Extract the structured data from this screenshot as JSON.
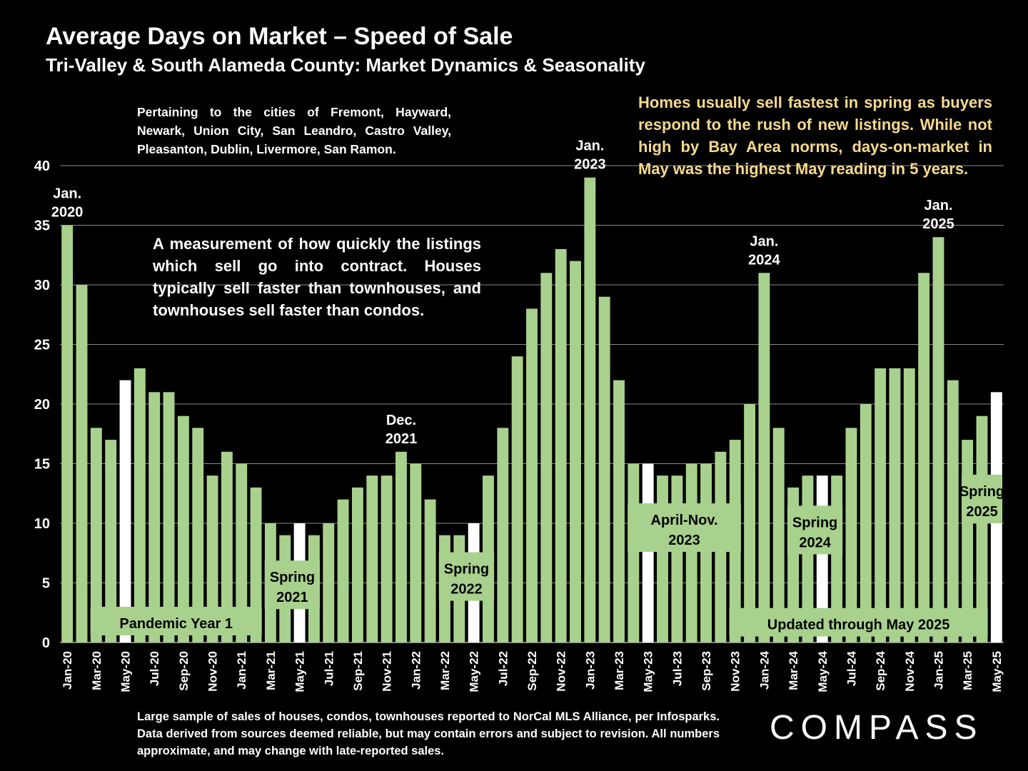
{
  "title": "Average Days on Market – Speed of Sale",
  "subtitle": "Tri-Valley & South Alameda County: Market Dynamics & Seasonality",
  "note_cities": "Pertaining to the cities of Fremont, Hayward, Newark, Union City, San Leandro, Castro Valley, Pleasanton, Dublin, Livermore, San Ramon.",
  "note_measurement": "A measurement of how quickly the listings which sell go into contract. Houses typically sell faster than townhouses, and townhouses sell faster than condos.",
  "note_spring": "Homes usually sell fastest in spring as buyers respond to the rush of new listings. While not high by Bay Area norms, days-on-market in May was the highest May reading in 5 years.",
  "footnote": "Large sample of sales of houses, condos, townhouses reported to NorCal MLS Alliance, per Infosparks. Data derived from sources deemed reliable, but may contain errors and subject to revision. All numbers approximate, and may change with late-reported sales.",
  "logo": "COMPASS",
  "colors": {
    "bar": "#a9d18e",
    "highlight": "#ffffff",
    "note_spring": "#f6d98e",
    "background": "#000000"
  },
  "chart_data": {
    "type": "bar",
    "title": "Average Days on Market – Speed of Sale",
    "ylim": [
      0,
      40
    ],
    "yticks": [
      0,
      5,
      10,
      15,
      20,
      25,
      30,
      35,
      40
    ],
    "grid": true,
    "categories": [
      "Jan-20",
      "Feb-20",
      "Mar-20",
      "Apr-20",
      "May-20",
      "Jun-20",
      "Jul-20",
      "Aug-20",
      "Sep-20",
      "Oct-20",
      "Nov-20",
      "Dec-20",
      "Jan-21",
      "Feb-21",
      "Mar-21",
      "Apr-21",
      "May-21",
      "Jun-21",
      "Jul-21",
      "Aug-21",
      "Sep-21",
      "Oct-21",
      "Nov-21",
      "Dec-21",
      "Jan-22",
      "Feb-22",
      "Mar-22",
      "Apr-22",
      "May-22",
      "Jun-22",
      "Jul-22",
      "Aug-22",
      "Sep-22",
      "Oct-22",
      "Nov-22",
      "Dec-22",
      "Jan-23",
      "Feb-23",
      "Mar-23",
      "Apr-23",
      "May-23",
      "Jun-23",
      "Jul-23",
      "Aug-23",
      "Sep-23",
      "Oct-23",
      "Nov-23",
      "Dec-23",
      "Jan-24",
      "Feb-24",
      "Mar-24",
      "Apr-24",
      "May-24",
      "Jun-24",
      "Jul-24",
      "Aug-24",
      "Sep-24",
      "Oct-24",
      "Nov-24",
      "Dec-24",
      "Jan-25",
      "Feb-25",
      "Mar-25",
      "Apr-25",
      "May-25"
    ],
    "xtick_labels": [
      "Jan-20",
      "Mar-20",
      "May-20",
      "Jul-20",
      "Sep-20",
      "Nov-20",
      "Jan-21",
      "Mar-21",
      "May-21",
      "Jul-21",
      "Sep-21",
      "Nov-21",
      "Jan-22",
      "Mar-22",
      "May-22",
      "Jul-22",
      "Sep-22",
      "Nov-22",
      "Jan-23",
      "Mar-23",
      "May-23",
      "Jul-23",
      "Sep-23",
      "Nov-23",
      "Jan-24",
      "Mar-24",
      "May-24",
      "Jul-24",
      "Sep-24",
      "Nov-24",
      "Jan-25",
      "Mar-25",
      "May-25"
    ],
    "values": [
      35,
      30,
      18,
      17,
      22,
      23,
      21,
      21,
      19,
      18,
      14,
      16,
      15,
      13,
      10,
      9,
      10,
      9,
      10,
      12,
      13,
      14,
      14,
      16,
      15,
      12,
      9,
      9,
      10,
      14,
      18,
      24,
      28,
      31,
      33,
      32,
      39,
      29,
      22,
      15,
      15,
      14,
      14,
      15,
      15,
      16,
      17,
      20,
      31,
      18,
      13,
      14,
      14,
      14,
      18,
      20,
      23,
      23,
      23,
      31,
      34,
      22,
      17,
      19,
      21
    ],
    "highlighted": [
      "May-20",
      "May-21",
      "May-22",
      "May-23",
      "May-24",
      "May-25"
    ],
    "peak_annotations": [
      {
        "category": "Jan-20",
        "text": [
          "Jan.",
          "2020"
        ]
      },
      {
        "category": "Dec-21",
        "text": [
          "Dec.",
          "2021"
        ]
      },
      {
        "category": "Jan-23",
        "text": [
          "Jan.",
          "2023"
        ]
      },
      {
        "category": "Jan-24",
        "text": [
          "Jan.",
          "2024"
        ]
      },
      {
        "category": "Jan-25",
        "text": [
          "Jan.",
          "2025"
        ]
      }
    ],
    "period_labels": [
      {
        "text": [
          "Pandemic Year 1"
        ],
        "from": "Mar-20",
        "to": "Feb-21",
        "y": 0.6
      },
      {
        "text": [
          "Spring",
          "2021"
        ],
        "from": "Mar-21",
        "to": "Jun-21",
        "y": 2.8
      },
      {
        "text": [
          "Spring",
          "2022"
        ],
        "from": "Mar-22",
        "to": "Jun-22",
        "y": 3.5
      },
      {
        "text": [
          "April-Nov.",
          "2023"
        ],
        "from": "Apr-23",
        "to": "Nov-23",
        "y": 7.6
      },
      {
        "text": [
          "Spring",
          "2024"
        ],
        "from": "Mar-24",
        "to": "Jun-24",
        "y": 7.4
      },
      {
        "text": [
          "Spring",
          "2025"
        ],
        "from": "Mar-25",
        "to": "May-25",
        "y": 10.0
      },
      {
        "text": [
          "Updated through May 2025"
        ],
        "from": "Nov-23",
        "to": "Apr-25",
        "y": 0.5
      }
    ]
  }
}
